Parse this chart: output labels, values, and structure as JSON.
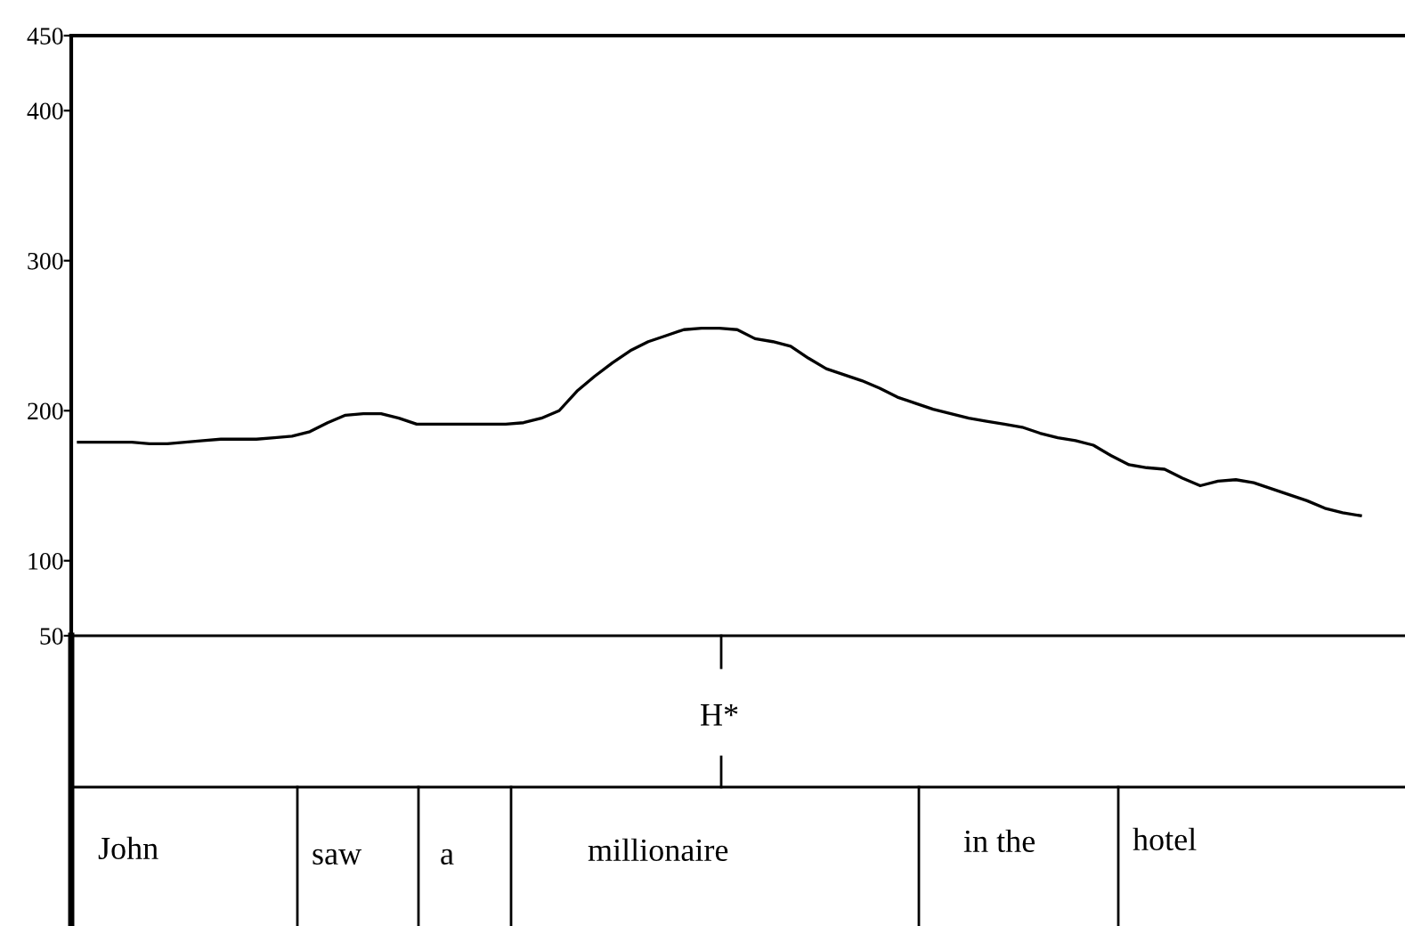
{
  "chart_data": {
    "type": "line",
    "categories": [
      null,
      null,
      null,
      null,
      null,
      null,
      null,
      null,
      null,
      null,
      null,
      null,
      null,
      null,
      null,
      null,
      null,
      null,
      null,
      null,
      null,
      null,
      null,
      null,
      null,
      null,
      null,
      null,
      null,
      null,
      null,
      null,
      null,
      null,
      null,
      null,
      null,
      null,
      null,
      null,
      null,
      null,
      null,
      null,
      null,
      null,
      null,
      null,
      null,
      null,
      null,
      null,
      null,
      null,
      null,
      null,
      null,
      null,
      null,
      null,
      null,
      null,
      null,
      null,
      null,
      null,
      null,
      null,
      null,
      null,
      null,
      null,
      null
    ],
    "series": [
      {
        "color": "#000000",
        "values": [
          179,
          179,
          179,
          179,
          178,
          178,
          179,
          180,
          181,
          181,
          181,
          182,
          183,
          186,
          192,
          197,
          198,
          198,
          195,
          191,
          191,
          191,
          191,
          191,
          191,
          192,
          195,
          200,
          213,
          223,
          232,
          240,
          246,
          250,
          254,
          255,
          255,
          254,
          248,
          246,
          243,
          235,
          228,
          224,
          220,
          215,
          209,
          205,
          201,
          198,
          195,
          193,
          191,
          189,
          185,
          182,
          180,
          177,
          170,
          164,
          162,
          161,
          155,
          150,
          153,
          154,
          152,
          148,
          144,
          140,
          135,
          132,
          130
        ]
      }
    ],
    "ylim": [
      50,
      450
    ],
    "yticks": [
      50,
      100,
      200,
      300,
      400,
      450
    ],
    "tick_labels": "y",
    "grid": false,
    "legend": false,
    "marker": "none",
    "line_style": "solid",
    "annotations": [
      "H*",
      "John",
      "saw",
      "a",
      "millionaire",
      "in the",
      "hotel"
    ]
  }
}
